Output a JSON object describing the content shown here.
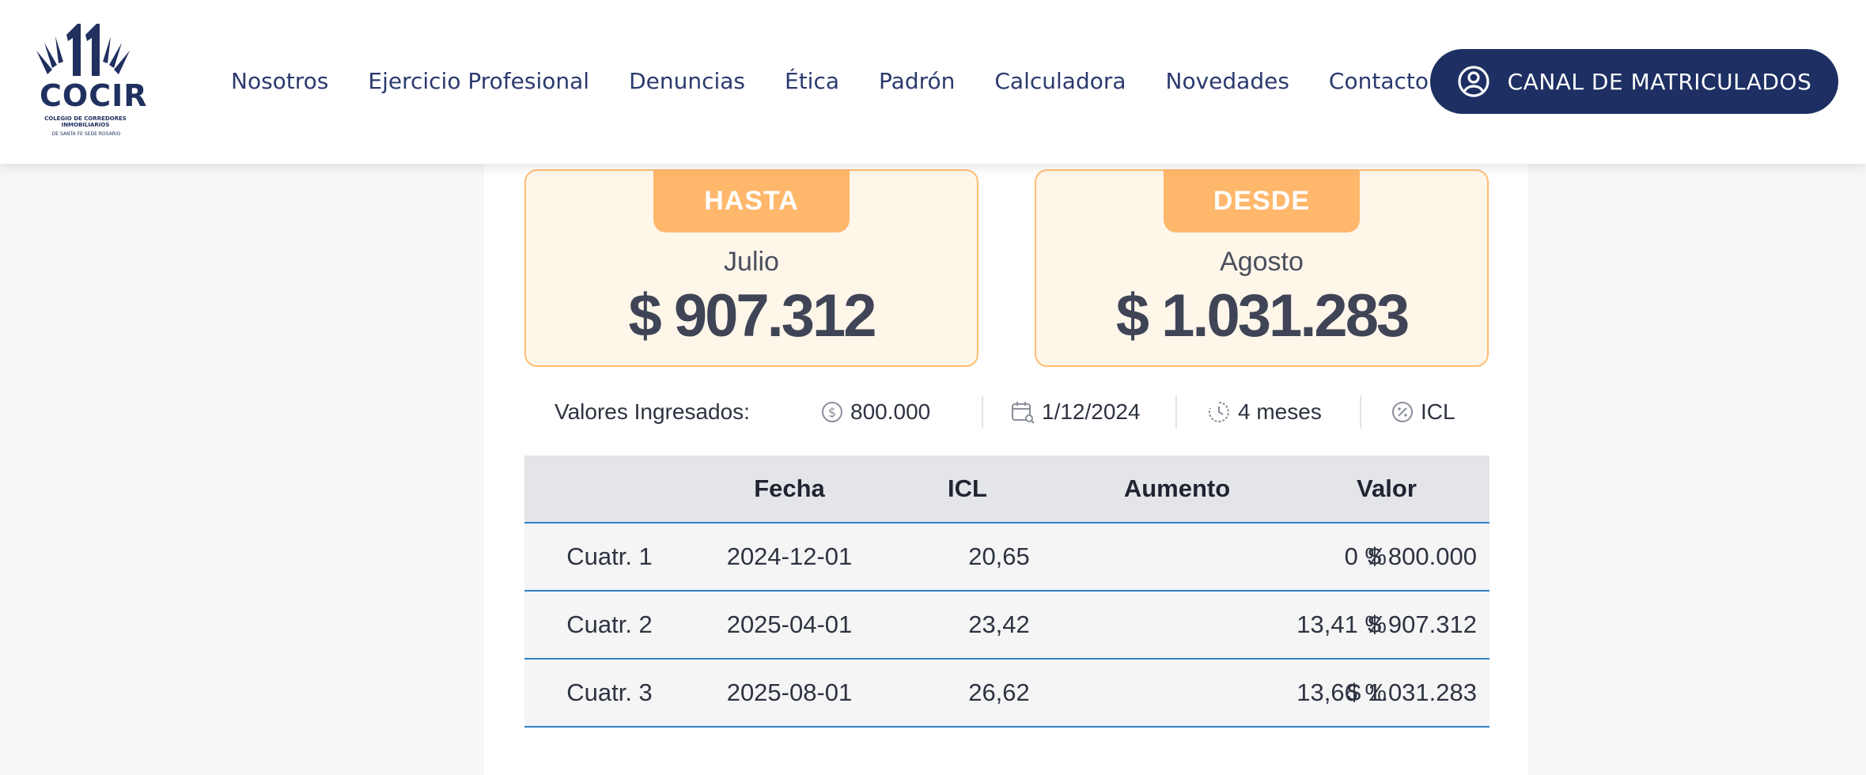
{
  "header": {
    "logo": {
      "wordmark": "COCIR",
      "subtitle": "COLEGIO DE CORREDORES INMOBILIARIOS",
      "subtitle2": "DE SANTA FE SEDE ROSARIO"
    },
    "nav": [
      {
        "label": "Nosotros"
      },
      {
        "label": "Ejercicio Profesional"
      },
      {
        "label": "Denuncias"
      },
      {
        "label": "Ética"
      },
      {
        "label": "Padrón"
      },
      {
        "label": "Calculadora"
      },
      {
        "label": "Novedades"
      },
      {
        "label": "Contacto"
      }
    ],
    "cta": {
      "label": "CANAL DE MATRICULADOS",
      "icon": "user-circle-icon"
    }
  },
  "results": {
    "hasta": {
      "tag": "HASTA",
      "month": "Julio",
      "value": "$ 907.312"
    },
    "desde": {
      "tag": "DESDE",
      "month": "Agosto",
      "value": "$ 1.031.283"
    }
  },
  "summary": {
    "label": "Valores Ingresados:",
    "amount": "800.000",
    "date": "1/12/2024",
    "period": "4 meses",
    "index": "ICL",
    "icons": [
      "dollar-coin-icon",
      "calendar-search-icon",
      "clock-history-icon",
      "percent-circle-icon"
    ]
  },
  "table": {
    "headers": [
      "",
      "Fecha",
      "ICL",
      "Aumento",
      "Valor"
    ],
    "rows": [
      [
        "Cuatr. 1",
        "2024-12-01",
        "20,65",
        "0 %",
        "$ 800.000"
      ],
      [
        "Cuatr. 2",
        "2025-04-01",
        "23,42",
        "13,41 %",
        "$ 907.312"
      ],
      [
        "Cuatr. 3",
        "2025-08-01",
        "26,62",
        "13,66 %",
        "$ 1.031.283"
      ]
    ]
  },
  "colors": {
    "brand_navy": "#1d2f63",
    "accent_orange": "#ffb76b",
    "result_bg": "#fff6ea",
    "table_border": "#2f80c9"
  }
}
